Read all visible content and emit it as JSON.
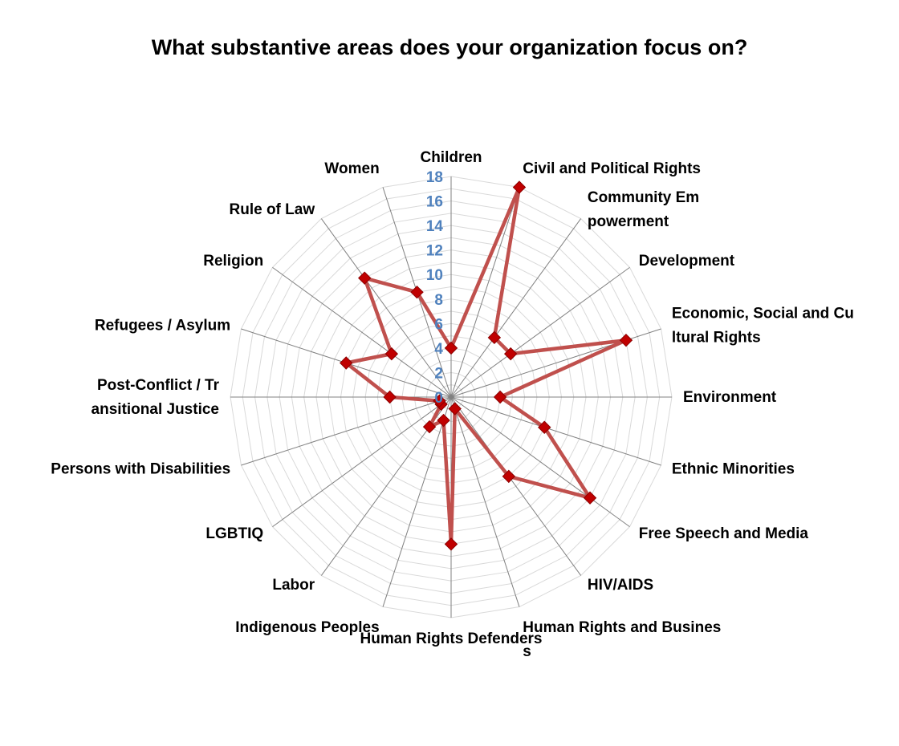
{
  "title": "What substantive areas does your organization focus on?",
  "colors": {
    "series": "#c0504d",
    "marker": "#c00000",
    "marker_edge": "#8b0000",
    "tick_labels": "#4f81bd",
    "grid": "#d9d9d9",
    "spokes": "#808080"
  },
  "chart_data": {
    "type": "radar",
    "title": "What substantive areas does your organization focus on?",
    "rlim": [
      0,
      18
    ],
    "r_ticks": [
      "0",
      "2",
      "4",
      "6",
      "8",
      "10",
      "12",
      "14",
      "16",
      "18"
    ],
    "grid": true,
    "legend": "none",
    "categories": [
      "Children",
      "Civil and Political Rights",
      "Community Empowerment",
      "Development",
      "Economic, Social and Cultural Rights",
      "Environment",
      "Ethnic Minorities",
      "Free Speech and Media",
      "HIV/AIDS",
      "Human Rights and Business",
      "Human Rights Defenders",
      "Indigenous Peoples",
      "Labor",
      "LGBTIQ",
      "Persons with Disabilities",
      "Post-Conflict / Transitional Justice",
      "Refugees / Asylum",
      "Religion",
      "Rule of Law",
      "Women"
    ],
    "series": [
      {
        "values": [
          4,
          18,
          6,
          6,
          15,
          4,
          8,
          14,
          8,
          1,
          12,
          2,
          3,
          1,
          1,
          5,
          9,
          6,
          12,
          9
        ]
      }
    ]
  }
}
